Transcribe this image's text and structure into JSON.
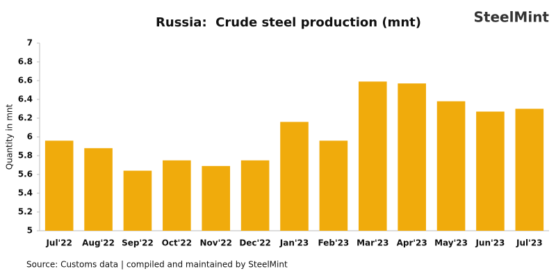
{
  "chart_data": {
    "type": "bar",
    "title": "Russia:  Crude steel production (mnt)",
    "logo": "SteelMint",
    "y_label": "Quantity in mnt",
    "source": "Source:  Customs data | compiled and maintained by SteelMint",
    "categories": [
      "Jul'22",
      "Aug'22",
      "Sep'22",
      "Oct'22",
      "Nov'22",
      "Dec'22",
      "Jan'23",
      "Feb'23",
      "Mar'23",
      "Apr'23",
      "May'23",
      "Jun'23",
      "Jul'23"
    ],
    "values": [
      5.96,
      5.88,
      5.64,
      5.75,
      5.69,
      5.75,
      6.16,
      5.96,
      6.59,
      6.57,
      6.38,
      6.27,
      6.3
    ],
    "color": "#f0ab0c",
    "ylim": [
      5,
      7
    ],
    "yticks": [
      5,
      5.2,
      5.4,
      5.6,
      5.8,
      6,
      6.2,
      6.4,
      6.6,
      6.8,
      7
    ],
    "grid": false
  }
}
